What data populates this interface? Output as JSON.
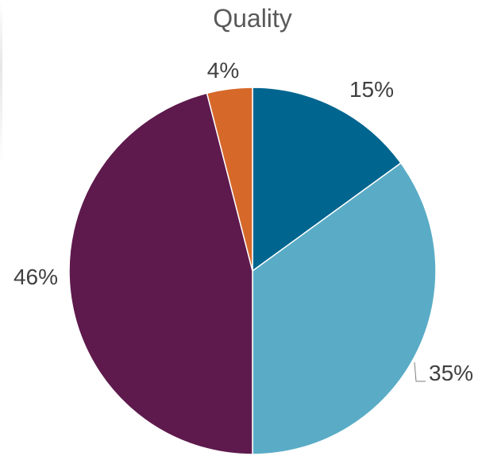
{
  "chart_data": {
    "type": "pie",
    "title": "Quality",
    "slices": [
      {
        "label": "15%",
        "value": 15,
        "color": "#00658f"
      },
      {
        "label": "35%",
        "value": 35,
        "color": "#5aacc6"
      },
      {
        "label": "46%",
        "value": 46,
        "color": "#5e1a4d"
      },
      {
        "label": "4%",
        "value": 4,
        "color": "#d6692a"
      }
    ],
    "start_angle": "12 o'clock",
    "direction": "clockwise",
    "legend": "none"
  }
}
